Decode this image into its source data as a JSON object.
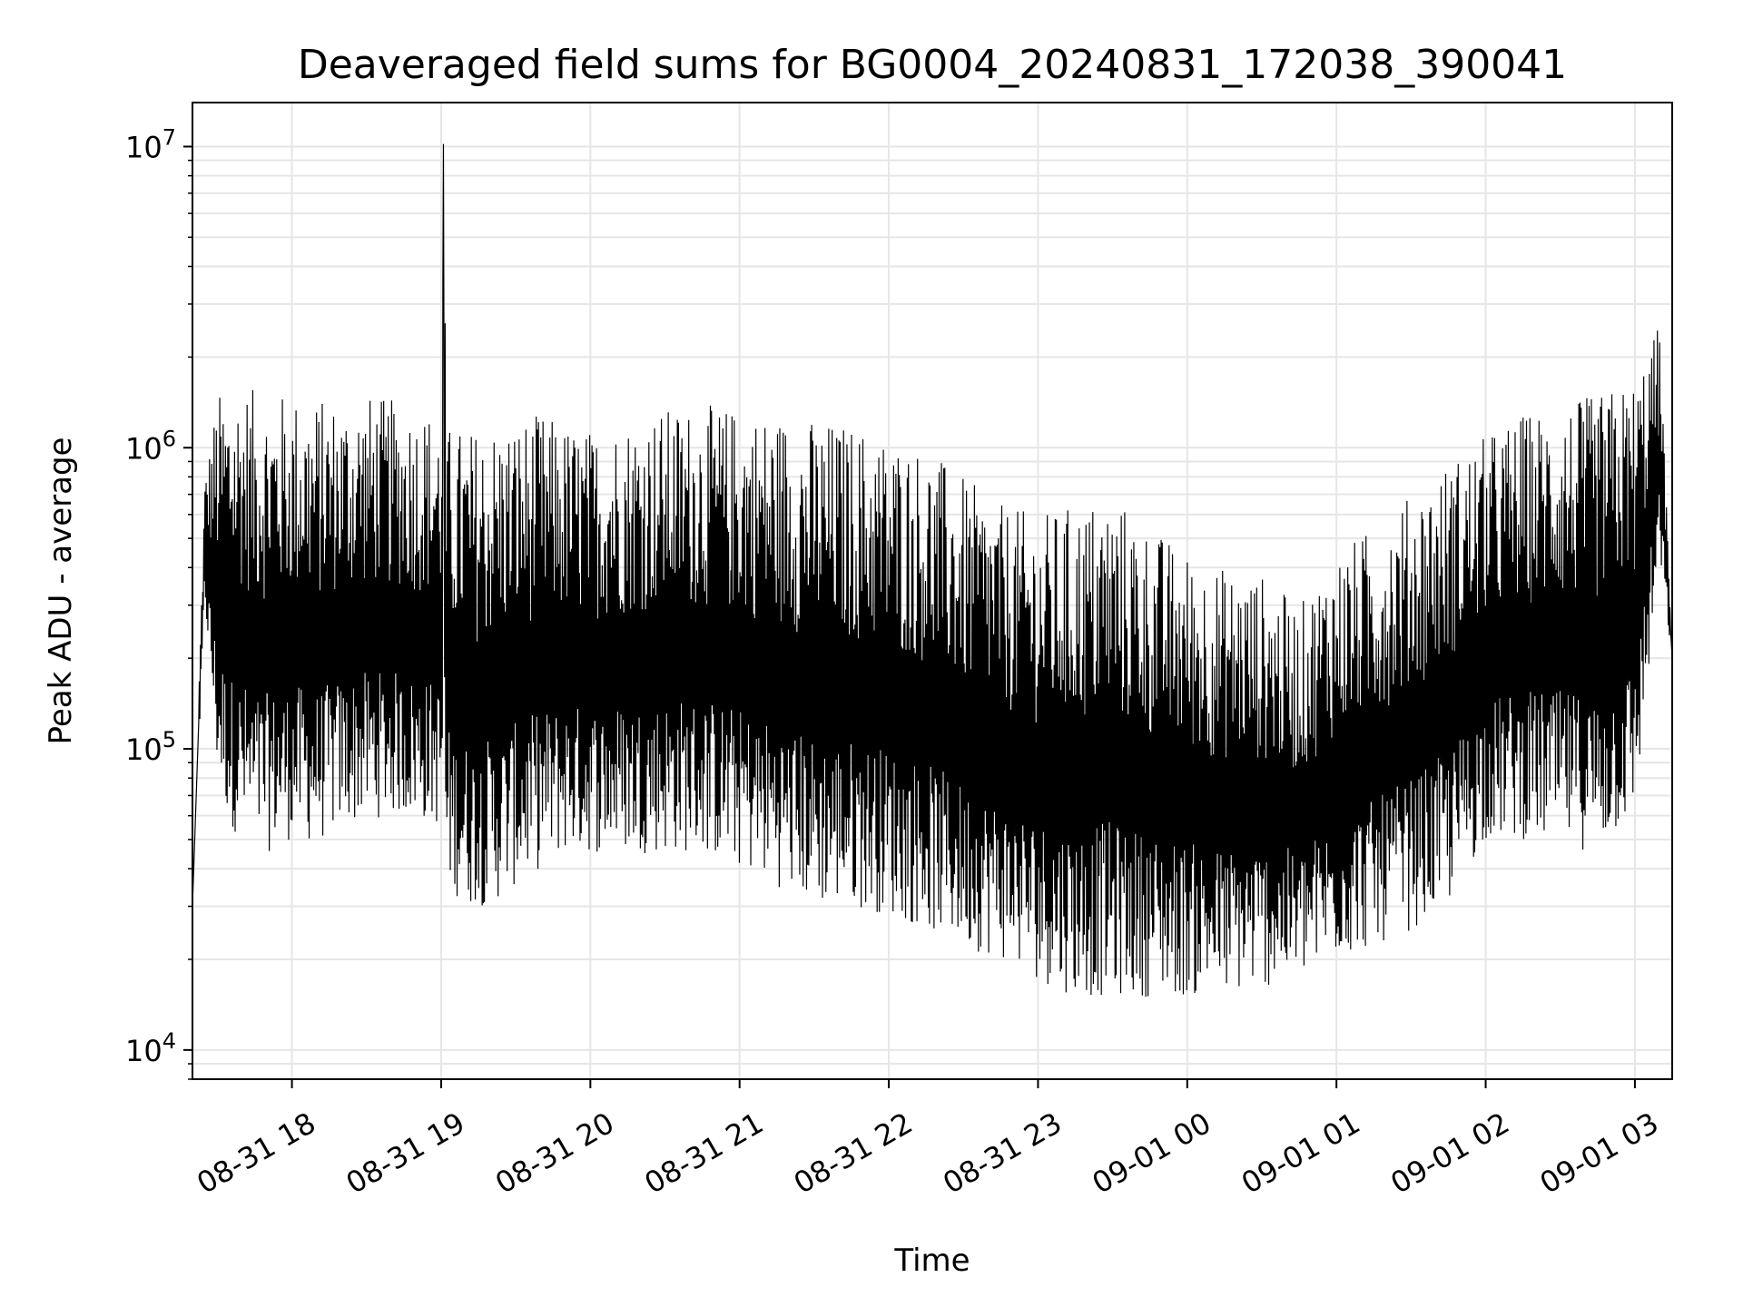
{
  "chart_data": {
    "type": "line",
    "title": "Deaveraged field sums for BG0004_20240831_172038_390041",
    "xlabel": "Time",
    "ylabel": "Peak ADU - average",
    "y_scale": "log",
    "ylim": [
      8000,
      14000000
    ],
    "xlim": [
      "2024-08-31 17:20",
      "2024-09-01 03:15"
    ],
    "grid": true,
    "line_color": "#000000",
    "x_ticks": [
      "08-31 18",
      "08-31 19",
      "08-31 20",
      "08-31 21",
      "08-31 22",
      "08-31 23",
      "09-01 00",
      "09-01 01",
      "09-01 02",
      "09-01 03"
    ],
    "y_ticks": [
      {
        "value": 10000,
        "base": "10",
        "exp": "4"
      },
      {
        "value": 100000,
        "base": "10",
        "exp": "5"
      },
      {
        "value": 1000000,
        "base": "10",
        "exp": "6"
      },
      {
        "value": 10000000,
        "base": "10",
        "exp": "7"
      }
    ],
    "series": [
      {
        "x": [
          "2024-08-31 17:20",
          "2024-08-31 17:25",
          "2024-08-31 17:30",
          "2024-08-31 17:35",
          "2024-08-31 17:40",
          "2024-08-31 17:45",
          "2024-08-31 17:50",
          "2024-08-31 17:55",
          "2024-08-31 18:00",
          "2024-08-31 18:10",
          "2024-08-31 18:20",
          "2024-08-31 18:30",
          "2024-08-31 18:40",
          "2024-08-31 18:50",
          "2024-08-31 19:00",
          "2024-08-31 19:01",
          "2024-08-31 19:02",
          "2024-08-31 19:10",
          "2024-08-31 19:20",
          "2024-08-31 19:30",
          "2024-08-31 19:40",
          "2024-08-31 19:50",
          "2024-08-31 20:00",
          "2024-08-31 20:15",
          "2024-08-31 20:30",
          "2024-08-31 20:45",
          "2024-08-31 21:00",
          "2024-08-31 21:15",
          "2024-08-31 21:30",
          "2024-08-31 21:45",
          "2024-08-31 22:00",
          "2024-08-31 22:15",
          "2024-08-31 22:30",
          "2024-08-31 22:45",
          "2024-08-31 23:00",
          "2024-08-31 23:15",
          "2024-08-31 23:30",
          "2024-08-31 23:45",
          "2024-09-01 00:00",
          "2024-09-01 00:15",
          "2024-09-01 00:30",
          "2024-09-01 00:45",
          "2024-09-01 01:00",
          "2024-09-01 01:15",
          "2024-09-01 01:30",
          "2024-09-01 01:45",
          "2024-09-01 02:00",
          "2024-09-01 02:15",
          "2024-09-01 02:30",
          "2024-09-01 02:45",
          "2024-09-01 03:00",
          "2024-09-01 03:10",
          "2024-09-01 03:15"
        ],
        "upper": [
          30000,
          800000,
          1500000,
          1600000,
          1650000,
          1550000,
          1500000,
          1520000,
          1500000,
          1450000,
          1450000,
          1500000,
          1450000,
          1380000,
          1300000,
          10200000,
          1200000,
          1150000,
          1200000,
          1250000,
          1300000,
          1200000,
          1150000,
          1250000,
          1350000,
          1400000,
          1350000,
          1300000,
          1250000,
          1200000,
          1100000,
          1000000,
          800000,
          650000,
          600000,
          650000,
          700000,
          550000,
          450000,
          400000,
          380000,
          300000,
          450000,
          550000,
          700000,
          900000,
          1100000,
          1300000,
          1400000,
          1500000,
          1700000,
          2600000,
          200000
        ],
        "lower": [
          30000,
          300000,
          80000,
          55000,
          50000,
          45000,
          45000,
          48000,
          50000,
          48000,
          55000,
          58000,
          60000,
          58000,
          55000,
          55000,
          35000,
          30000,
          30000,
          35000,
          40000,
          45000,
          45000,
          45000,
          45000,
          45000,
          40000,
          35000,
          30000,
          30000,
          28000,
          25000,
          22000,
          20000,
          17000,
          15000,
          15000,
          15000,
          15000,
          15000,
          16000,
          17000,
          20000,
          22000,
          25000,
          30000,
          50000,
          50000,
          48000,
          45000,
          60000,
          400000,
          200000
        ]
      }
    ]
  }
}
